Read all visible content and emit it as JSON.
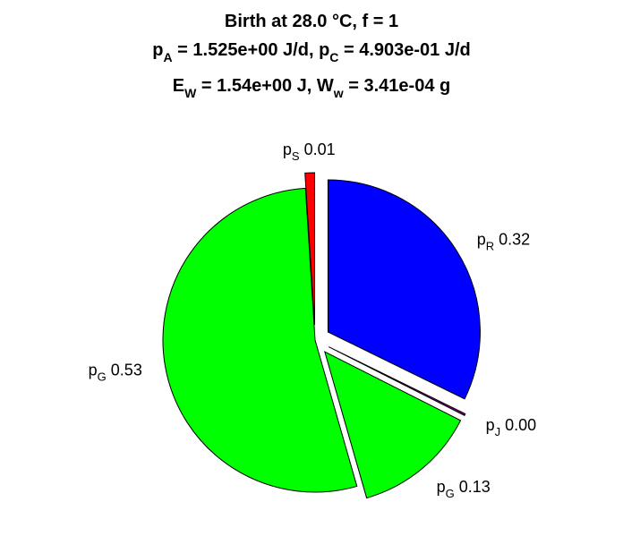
{
  "chart_data": {
    "type": "pie",
    "title": {
      "line1": "Birth at 28.0 °C, f = 1",
      "line2": {
        "p": "p",
        "A_sub": "A",
        "A_val": " = 1.525e+00 J/d, ",
        "C_sub": "C",
        "C_val": " = 4.903e-01 J/d"
      },
      "line3": {
        "E": "E",
        "W_sub": "W",
        "E_val": " = 1.54e+00 J, ",
        "Ww": "W",
        "w_sub": "w",
        "Ww_val": " = 3.41e-04 g"
      }
    },
    "slices": [
      {
        "main": "p",
        "sub": "R",
        "value_text": "0.32",
        "value": 0.32,
        "color": "#0000ff",
        "exploded": true
      },
      {
        "main": "p",
        "sub": "J",
        "value_text": "0.00",
        "value": 0.002,
        "color": "#800080",
        "exploded": true
      },
      {
        "main": "p",
        "sub": "G",
        "value_text": "0.13",
        "value": 0.13,
        "color": "#00ff00",
        "exploded": true
      },
      {
        "main": "p",
        "sub": "G",
        "value_text": "0.53",
        "value": 0.53,
        "color": "#00ff00",
        "exploded": false
      },
      {
        "main": "p",
        "sub": "S",
        "value_text": "0.01",
        "value": 0.01,
        "color": "#ff0000",
        "exploded": true
      }
    ]
  }
}
